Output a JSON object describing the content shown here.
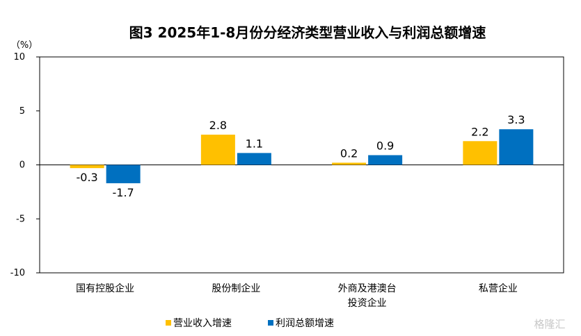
{
  "chart_data": {
    "type": "bar",
    "title": "图3 2025年1-8月份分经济类型营业收入与利润总额增速",
    "ylabel": "（%）",
    "ylim": [
      -10,
      10
    ],
    "yticks": [
      10,
      5,
      0,
      -5,
      -10
    ],
    "categories": [
      [
        "国有控股企业"
      ],
      [
        "股份制企业"
      ],
      [
        "外商及港澳台",
        "投资企业"
      ],
      [
        "私营企业"
      ]
    ],
    "series": [
      {
        "name": "营业收入增速",
        "color": "#FFC000",
        "values": [
          -0.3,
          2.8,
          0.2,
          2.2
        ]
      },
      {
        "name": "利润总额增速",
        "color": "#0070C0",
        "values": [
          -1.7,
          1.1,
          0.9,
          3.3
        ]
      }
    ],
    "grid": false,
    "legend_position": "bottom"
  },
  "watermark": "格隆汇"
}
